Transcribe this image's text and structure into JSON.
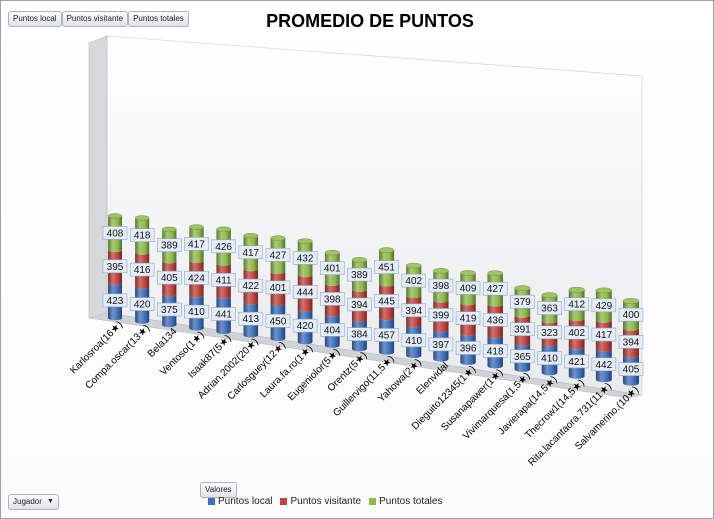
{
  "chart_data": {
    "type": "bar",
    "stacked": true,
    "three_d": true,
    "title": "PROMEDIO DE PUNTOS",
    "categories": [
      "Karlosroa(16★)",
      "Compa.oscar(13★)",
      "Bela134",
      "Ventoso(1★)",
      "Isaak87(5★)",
      "Adrian.2002(20★)",
      "Carlosguey(12★)",
      "Laura.fa.ro(1★)",
      "Eugeniolor(5★)",
      "Orentz(5★)",
      "Guillervigo(11,5★)",
      "Yahowa(2★)",
      "Elenvidal",
      "Dieguito12345(1★)",
      "Susanapawer(1★)",
      "Vivimarquesa(1,5★)",
      "Javierapa(14,5★)",
      "Thecrow1(14,5★)",
      "Rita.lacantaora.731(11★)",
      "Salvamerino.(10★)"
    ],
    "series": [
      {
        "name": "Puntos local",
        "color": "#3f6fba",
        "values": [
          423,
          420,
          375,
          410,
          441,
          413,
          450,
          420,
          404,
          384,
          457,
          410,
          397,
          396,
          418,
          365,
          410,
          421,
          442,
          405
        ]
      },
      {
        "name": "Puntos visitante",
        "color": "#c0433d",
        "values": [
          395,
          416,
          405,
          424,
          411,
          422,
          401,
          444,
          398,
          394,
          445,
          394,
          399,
          419,
          436,
          391,
          323,
          402,
          417,
          394
        ]
      },
      {
        "name": "Puntos totales",
        "color": "#8db84a",
        "values": [
          408,
          418,
          389,
          417,
          426,
          417,
          427,
          432,
          401,
          389,
          451,
          402,
          398,
          409,
          427,
          379,
          363,
          412,
          429,
          400
        ]
      }
    ],
    "legend_position": "bottom"
  },
  "pivot": {
    "filter_buttons": [
      "Puntos local",
      "Puntos visitante",
      "Puntos totales"
    ],
    "values_button": "Valores",
    "row_field": "Jugador",
    "dropdown_arrow": "▼"
  }
}
